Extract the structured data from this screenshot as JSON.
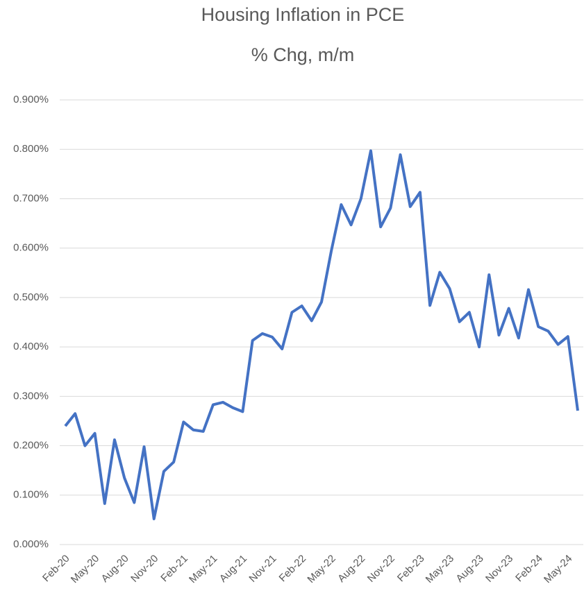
{
  "chart_data": {
    "type": "line",
    "title": "Housing Inflation in PCE",
    "subtitle": "% Chg, m/m",
    "categories": [
      "Feb-20",
      null,
      null,
      "May-20",
      null,
      null,
      "Aug-20",
      null,
      null,
      "Nov-20",
      null,
      null,
      "Feb-21",
      null,
      null,
      "May-21",
      null,
      null,
      "Aug-21",
      null,
      null,
      "Nov-21",
      null,
      null,
      "Feb-22",
      null,
      null,
      "May-22",
      null,
      null,
      "Aug-22",
      null,
      null,
      "Nov-22",
      null,
      null,
      "Feb-23",
      null,
      null,
      "May-23",
      null,
      null,
      "Aug-23",
      null,
      null,
      "Nov-23",
      null,
      null,
      "Feb-24",
      null,
      null,
      "May-24",
      null
    ],
    "series": [
      {
        "name": "Housing",
        "color": "#4472c4",
        "values": [
          0.24,
          0.265,
          0.2,
          0.225,
          0.083,
          0.212,
          0.135,
          0.085,
          0.198,
          0.052,
          0.148,
          0.167,
          0.248,
          0.232,
          0.229,
          0.283,
          0.288,
          0.277,
          0.269,
          0.413,
          0.427,
          0.42,
          0.396,
          0.47,
          0.483,
          0.453,
          0.491,
          0.595,
          0.688,
          0.647,
          0.7,
          0.797,
          0.643,
          0.681,
          0.789,
          0.684,
          0.713,
          0.484,
          0.551,
          0.518,
          0.451,
          0.47,
          0.4,
          0.546,
          0.424,
          0.478,
          0.418,
          0.516,
          0.441,
          0.432,
          0.405,
          0.421,
          0.271
        ]
      }
    ],
    "ylim": [
      0,
      0.9
    ],
    "yticks": [
      {
        "value": 0,
        "label": "0.000%"
      },
      {
        "value": 0.1,
        "label": "0.100%"
      },
      {
        "value": 0.2,
        "label": "0.200%"
      },
      {
        "value": 0.3,
        "label": "0.300%"
      },
      {
        "value": 0.4,
        "label": "0.400%"
      },
      {
        "value": 0.5,
        "label": "0.500%"
      },
      {
        "value": 0.6,
        "label": "0.600%"
      },
      {
        "value": 0.7,
        "label": "0.700%"
      },
      {
        "value": 0.8,
        "label": "0.800%"
      },
      {
        "value": 0.9,
        "label": "0.900%"
      }
    ],
    "grid": true
  }
}
